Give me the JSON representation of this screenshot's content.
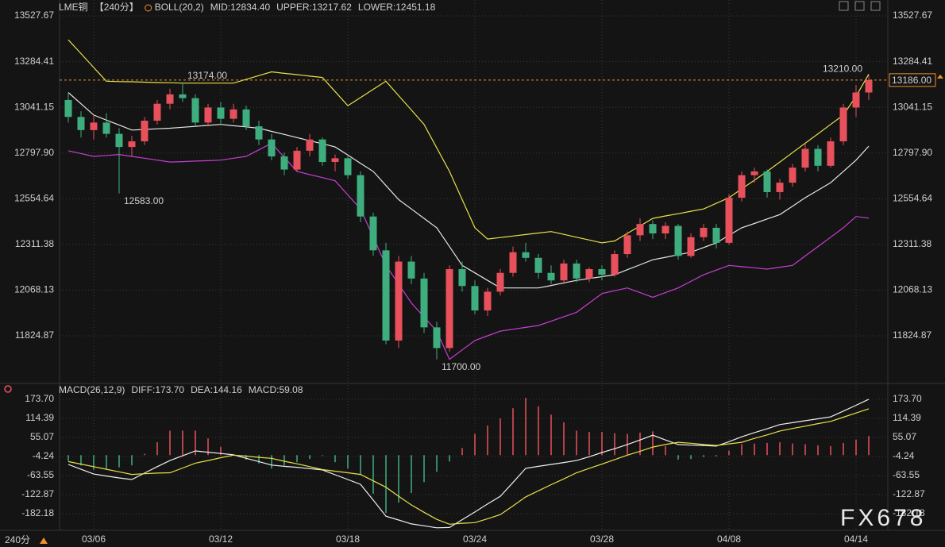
{
  "chart_data": [
    {
      "type": "candlestick",
      "title": "LME铜",
      "period": "【240分】",
      "indicator": "BOLL(20,2)",
      "up_color": "#e8515c",
      "down_color": "#3fae7f",
      "open": [
        13080,
        12990,
        12920,
        12960,
        12900,
        12830,
        12860,
        12970,
        13060,
        13110,
        13090,
        12960,
        13040,
        12980,
        13030,
        12940,
        12870,
        12780,
        12710,
        12810,
        12870,
        12750,
        12770,
        12680,
        12460,
        12280,
        11800,
        12220,
        12130,
        11870,
        11760,
        12180,
        12090,
        11960,
        12060,
        12160,
        12270,
        12240,
        12160,
        12120,
        12210,
        12130,
        12180,
        12150,
        12260,
        12360,
        12420,
        12370,
        12410,
        12250,
        12350,
        12400,
        12320,
        12560,
        12680,
        12700,
        12590,
        12640,
        12720,
        12820,
        12730,
        12860,
        13040,
        13120
      ],
      "high": [
        13120,
        13020,
        13000,
        13010,
        12930,
        12890,
        12990,
        13080,
        13140,
        13174,
        13110,
        13060,
        13070,
        13060,
        13050,
        12970,
        12900,
        12800,
        12830,
        12900,
        12880,
        12790,
        12780,
        12700,
        12480,
        12320,
        12250,
        12250,
        12160,
        11900,
        12200,
        12220,
        12120,
        12080,
        12180,
        12300,
        12320,
        12260,
        12200,
        12230,
        12230,
        12190,
        12200,
        12280,
        12380,
        12450,
        12440,
        12430,
        12420,
        12370,
        12420,
        12420,
        12580,
        12700,
        12720,
        12710,
        12660,
        12740,
        12850,
        12840,
        12880,
        13060,
        13160,
        13210
      ],
      "low": [
        12960,
        12880,
        12870,
        12880,
        12583,
        12780,
        12840,
        12950,
        13030,
        13070,
        12940,
        12940,
        12950,
        12960,
        12920,
        12840,
        12760,
        12680,
        12700,
        12780,
        12730,
        12700,
        12660,
        12430,
        12250,
        11780,
        11760,
        12100,
        11840,
        11700,
        11740,
        12060,
        11940,
        11930,
        12040,
        12140,
        12220,
        12130,
        12100,
        12100,
        12110,
        12110,
        12120,
        12140,
        12240,
        12330,
        12340,
        12340,
        12230,
        12240,
        12330,
        12290,
        12310,
        12540,
        12640,
        12560,
        12550,
        12620,
        12700,
        12700,
        12720,
        12840,
        12990,
        13080
      ],
      "close": [
        12990,
        12920,
        12960,
        12900,
        12830,
        12860,
        12970,
        13060,
        13110,
        13090,
        12960,
        13040,
        12980,
        13030,
        12940,
        12870,
        12780,
        12710,
        12810,
        12870,
        12750,
        12770,
        12680,
        12460,
        12280,
        11800,
        12220,
        12130,
        11870,
        11760,
        12180,
        12090,
        11960,
        12060,
        12160,
        12270,
        12240,
        12160,
        12120,
        12210,
        12130,
        12180,
        12150,
        12260,
        12360,
        12420,
        12370,
        12410,
        12250,
        12350,
        12400,
        12320,
        12560,
        12680,
        12700,
        12590,
        12640,
        12720,
        12820,
        12730,
        12860,
        13040,
        13120,
        13186
      ],
      "series": [
        {
          "name": "MID:12834.40",
          "color": "#e6e6e6",
          "values": [
            13120,
            13060,
            13000,
            12973,
            12947,
            12920,
            12923,
            12927,
            12930,
            12935,
            12940,
            12945,
            12950,
            12943,
            12937,
            12930,
            12913,
            12897,
            12880,
            12863,
            12847,
            12830,
            12787,
            12743,
            12700,
            12625,
            12550,
            12500,
            12450,
            12400,
            12300,
            12200,
            12160,
            12120,
            12080,
            12080,
            12080,
            12080,
            12093,
            12107,
            12120,
            12130,
            12140,
            12150,
            12177,
            12203,
            12230,
            12243,
            12257,
            12270,
            12295,
            12320,
            12360,
            12400,
            12423,
            12447,
            12470,
            12515,
            12560,
            12600,
            12640,
            12700,
            12760,
            12834.4
          ]
        },
        {
          "name": "UPPER:13217.62",
          "color": "#e8e04a",
          "values": [
            13400,
            13327,
            13253,
            13180,
            13178,
            13177,
            13175,
            13173,
            13172,
            13170,
            13170,
            13170,
            13170,
            13170,
            13190,
            13210,
            13230,
            13222,
            13215,
            13207,
            13200,
            13125,
            13050,
            13093,
            13137,
            13180,
            13103,
            13027,
            12950,
            12825,
            12700,
            12550,
            12400,
            12340,
            12348,
            12356,
            12364,
            12372,
            12380,
            12365,
            12350,
            12335,
            12320,
            12330,
            12370,
            12410,
            12450,
            12463,
            12475,
            12488,
            12500,
            12530,
            12560,
            12607,
            12653,
            12700,
            12750,
            12800,
            12850,
            12900,
            12950,
            13000,
            13100,
            13217.62
          ]
        },
        {
          "name": "LOWER:12451.18",
          "color": "#c83ed4",
          "values": [
            12810,
            12795,
            12780,
            12785,
            12790,
            12780,
            12770,
            12760,
            12750,
            12752,
            12755,
            12757,
            12760,
            12770,
            12780,
            12815,
            12850,
            12775,
            12700,
            12683,
            12667,
            12650,
            12575,
            12500,
            12350,
            12200,
            12100,
            12000,
            11925,
            11850,
            11700,
            11750,
            11800,
            11825,
            11850,
            11860,
            11870,
            11880,
            11903,
            11927,
            11950,
            12000,
            12050,
            12065,
            12080,
            12055,
            12030,
            12055,
            12080,
            12115,
            12150,
            12175,
            12200,
            12193,
            12187,
            12180,
            12190,
            12200,
            12250,
            12300,
            12350,
            12400,
            12460,
            12451.18
          ]
        }
      ],
      "annotations": [
        {
          "value": 13174,
          "label": "13174.00"
        },
        {
          "value": 12583,
          "label": "12583.00"
        },
        {
          "value": 11700,
          "label": "11700.00"
        },
        {
          "value": 13210,
          "label": "13210.00"
        }
      ],
      "last_price": {
        "value": 13186,
        "label": "13186.00",
        "color": "#f0902a"
      },
      "ylim": [
        11575.8,
        13612.2
      ],
      "yticks": [
        13527.67,
        13284.41,
        13041.15,
        {
          "value": 12797.9,
          "label": "12797.90"
        },
        12554.64,
        12311.38,
        12068.13,
        11824.87
      ],
      "grid": true
    },
    {
      "type": "macd",
      "title": "MACD(26,12,9)",
      "categories": [
        null,
        null,
        "03/06",
        null,
        null,
        null,
        null,
        null,
        null,
        null,
        null,
        null,
        "03/12",
        null,
        null,
        null,
        null,
        null,
        null,
        null,
        null,
        null,
        "03/18",
        null,
        null,
        null,
        null,
        null,
        null,
        null,
        null,
        null,
        "03/24",
        null,
        null,
        null,
        null,
        null,
        null,
        null,
        null,
        null,
        "03/28",
        null,
        null,
        null,
        null,
        null,
        null,
        null,
        null,
        null,
        "04/08",
        null,
        null,
        null,
        null,
        null,
        null,
        null,
        null,
        null,
        "04/14",
        null
      ],
      "series": [
        {
          "name": "DIFF:173.70",
          "color": "#f0f0f0",
          "kind": "line",
          "values": [
            -29,
            -44,
            -59,
            -65,
            -71,
            -76,
            -56,
            -36,
            -17,
            -2,
            13,
            9,
            5,
            1,
            -10,
            -20,
            -31,
            -35,
            -38,
            -42,
            -46,
            -61,
            -76,
            -91,
            -140,
            -190,
            -202,
            -214,
            -220,
            -226,
            -225,
            -201,
            -177,
            -152,
            -128,
            -85,
            -41,
            -35,
            -29,
            -23,
            -17,
            -5,
            8,
            20,
            33,
            47,
            62,
            47,
            33,
            31,
            30,
            28,
            42,
            57,
            70,
            82,
            95,
            101,
            107,
            113,
            119,
            137,
            155,
            173.7
          ]
        },
        {
          "name": "DEA:144.16",
          "color": "#e8e04a",
          "kind": "line",
          "values": [
            -20,
            -28,
            -36,
            -44,
            -52,
            -60,
            -58,
            -56,
            -55,
            -40,
            -25,
            -17,
            -8,
            0,
            -3,
            -7,
            -10,
            -19,
            -27,
            -36,
            -45,
            -50,
            -55,
            -60,
            -80,
            -100,
            -128,
            -155,
            -178,
            -200,
            -215,
            -212,
            -210,
            -198,
            -185,
            -158,
            -130,
            -111,
            -92,
            -74,
            -55,
            -41,
            -28,
            -14,
            0,
            12,
            25,
            33,
            40,
            37,
            33,
            30,
            35,
            40,
            52,
            63,
            75,
            83,
            90,
            98,
            105,
            118,
            131,
            144.16
          ]
        },
        {
          "name": "MACD:59.08",
          "color": "#c83ed4",
          "kind": "bar",
          "up_color": "#e8515c",
          "down_color": "#3fae7f",
          "values": [
            -18,
            -32,
            -46,
            -42,
            -38,
            -32,
            4,
            40,
            76,
            76,
            76,
            52,
            26,
            2,
            -14,
            -26,
            -42,
            -32,
            -22,
            -12,
            -2,
            -22,
            -42,
            -62,
            -120,
            -180,
            -148,
            -118,
            -84,
            -52,
            -20,
            22,
            66,
            92,
            114,
            146,
            178,
            152,
            126,
            102,
            76,
            72,
            72,
            68,
            66,
            70,
            74,
            28,
            -14,
            -12,
            -6,
            -4,
            14,
            34,
            36,
            38,
            40,
            36,
            34,
            30,
            28,
            38,
            48,
            59.08
          ]
        }
      ],
      "ylim": [
        -234,
        218
      ],
      "yticks": [
        {
          "value": 173.7,
          "label": "173.70"
        },
        114.39,
        55.07,
        -4.24,
        -63.55,
        -122.87,
        -182.18
      ],
      "grid": true
    }
  ],
  "watermark": "FX678",
  "period_switch": "240分"
}
